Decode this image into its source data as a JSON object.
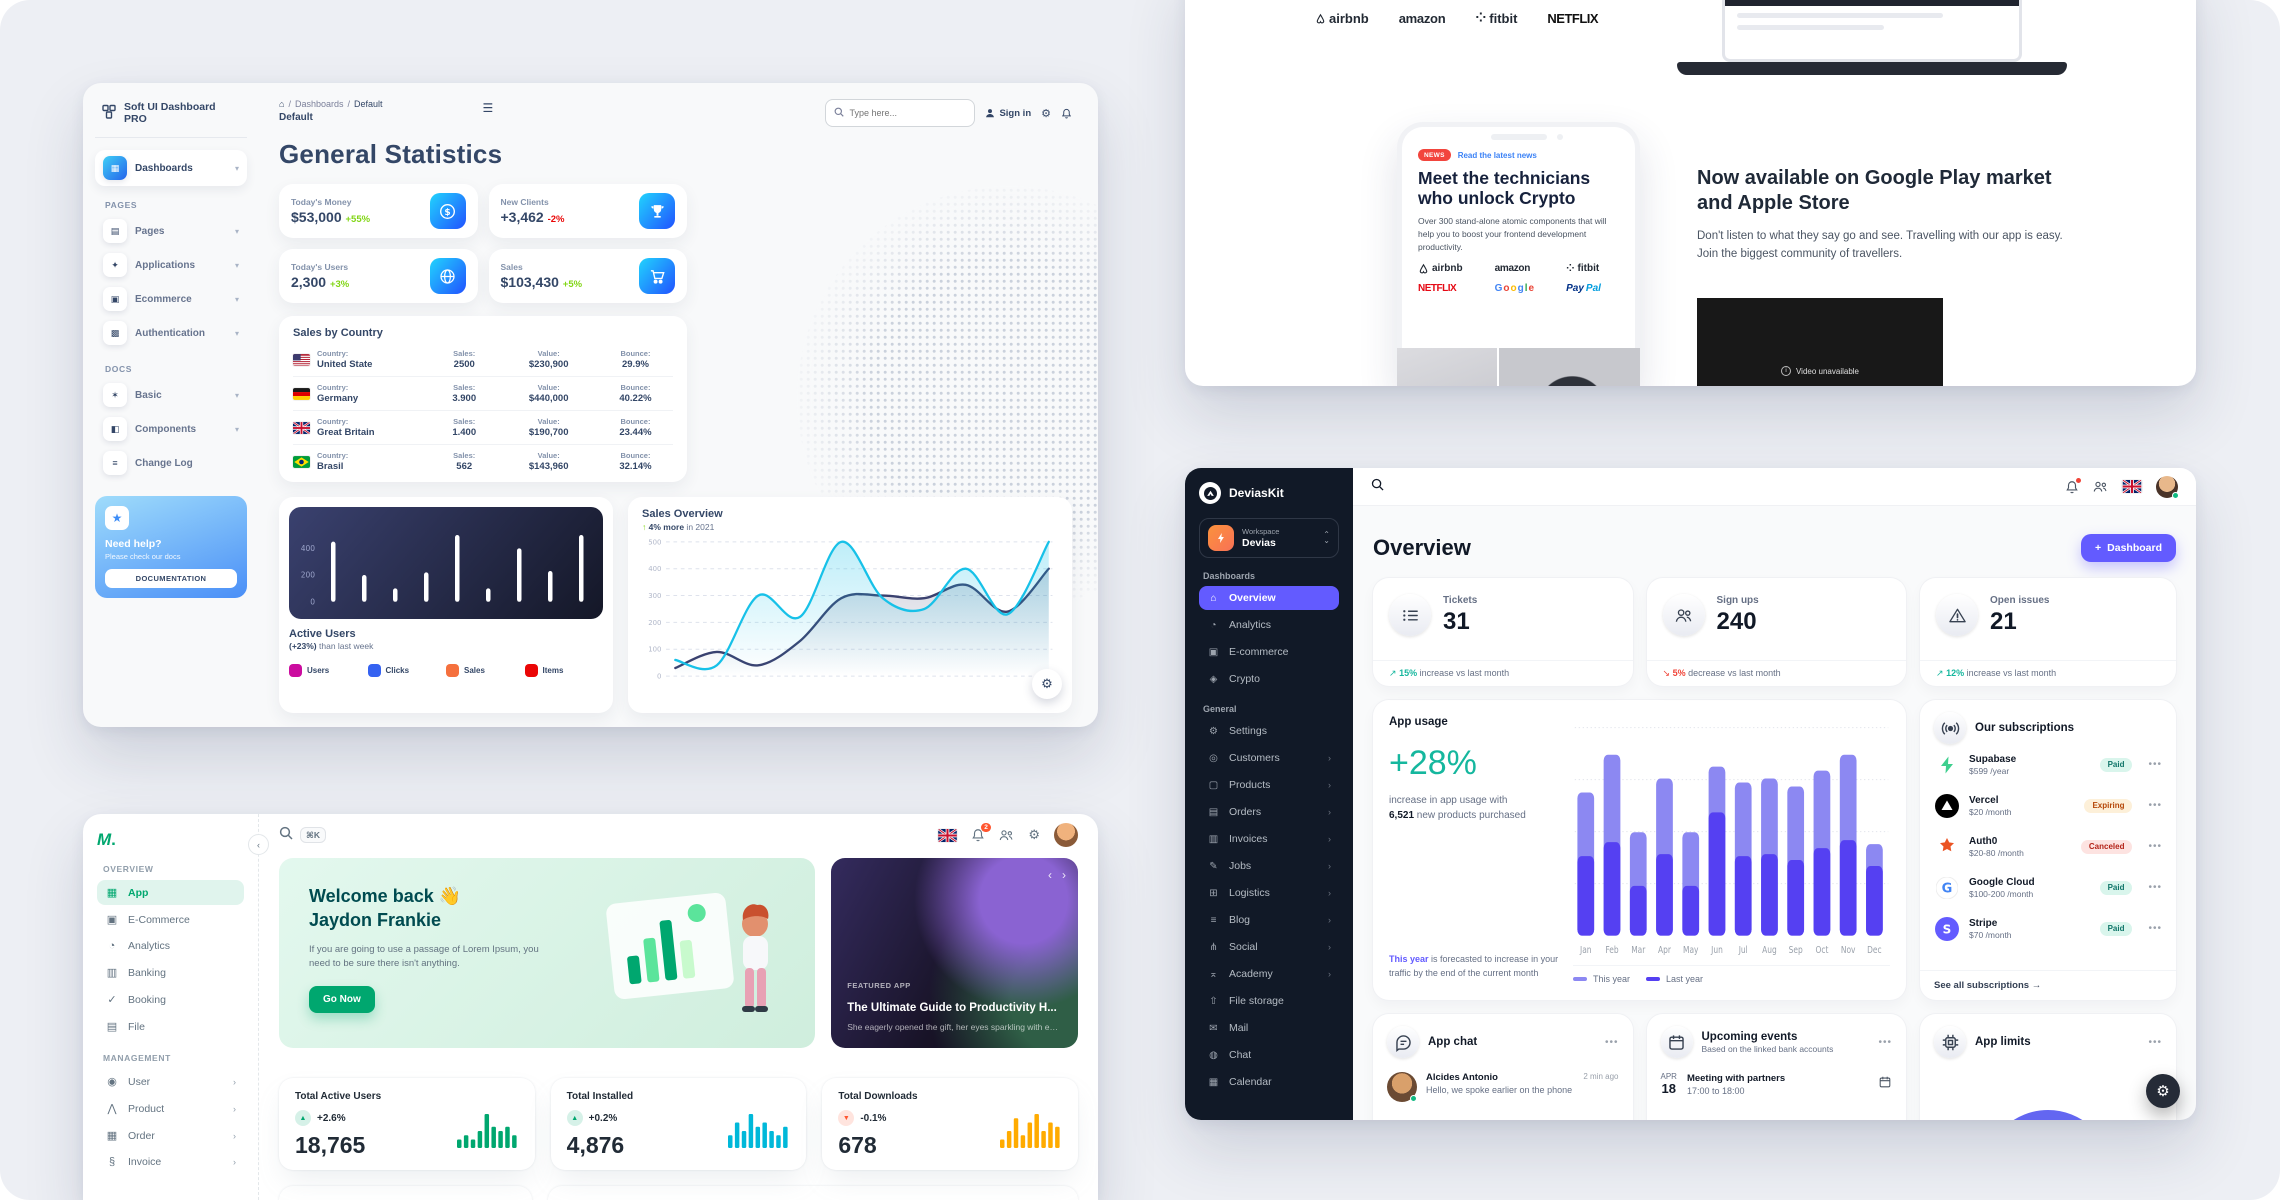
{
  "colors": {
    "softui_green": "#82d616",
    "softui_red": "#ea0606",
    "devias_purple": "#635bff",
    "devias_teal": "#15b79e",
    "devias_red": "#f04438",
    "minimal_green": "#00a76f",
    "minimal_cyan": "#00b8d9",
    "minimal_yellow": "#ffab00"
  },
  "icon_glyphs": {
    "dashboard-icon": "▦",
    "pages-icon": "▤",
    "applications-icon": "✦",
    "ecommerce-icon": "▣",
    "authentication-icon": "▩",
    "basic-icon": "✶",
    "components-icon": "◧",
    "changelog-icon": "≡",
    "home-icon": "⌂",
    "analytics-icon": "◔",
    "crypto-icon": "◈",
    "gear-icon": "⚙",
    "customers-icon": "◎",
    "products-icon": "▢",
    "orders-icon": "▤",
    "invoices-icon": "▥",
    "jobs-icon": "✎",
    "logistics-icon": "⊞",
    "blog-icon": "≡",
    "social-icon": "⋔",
    "academy-icon": "⌅",
    "file-storage-icon": "⇧",
    "mail-icon": "✉",
    "chat-icon": "◍",
    "calendar-icon": "▦",
    "banking-icon": "▥",
    "booking-icon": "✓",
    "file-icon": "▤",
    "user-icon": "◉",
    "product-icon": "⋀",
    "order-icon": "▦",
    "invoice-icon": "§"
  },
  "softui": {
    "brand": "Soft UI Dashboard PRO",
    "sidebar": {
      "active_item": {
        "label": "Dashboards",
        "icon": "dashboard-icon"
      },
      "sections": [
        {
          "title": "PAGES",
          "items": [
            {
              "label": "Pages",
              "icon": "pages-icon",
              "chevron": true
            },
            {
              "label": "Applications",
              "icon": "applications-icon",
              "chevron": true
            },
            {
              "label": "Ecommerce",
              "icon": "ecommerce-icon",
              "chevron": true
            },
            {
              "label": "Authentication",
              "icon": "authentication-icon",
              "chevron": true
            }
          ]
        },
        {
          "title": "DOCS",
          "items": [
            {
              "label": "Basic",
              "icon": "basic-icon",
              "chevron": true
            },
            {
              "label": "Components",
              "icon": "components-icon",
              "chevron": true
            },
            {
              "label": "Change Log",
              "icon": "changelog-icon",
              "chevron": false
            }
          ]
        }
      ],
      "help_card": {
        "title": "Need help?",
        "subtitle": "Please check our docs",
        "button": "DOCUMENTATION"
      }
    },
    "topbar": {
      "breadcrumb": [
        "Dashboards",
        "Default"
      ],
      "page": "Default",
      "search_placeholder": "Type here...",
      "sign_in": "Sign in"
    },
    "title": "General Statistics",
    "stat_cards": [
      {
        "label": "Today's Money",
        "value": "$53,000",
        "delta": "+55%",
        "dir": "up",
        "icon": "dollar-icon"
      },
      {
        "label": "New Clients",
        "value": "+3,462",
        "delta": "-2%",
        "dir": "down",
        "icon": "trophy-icon"
      },
      {
        "label": "Today's Users",
        "value": "2,300",
        "delta": "+3%",
        "dir": "up",
        "icon": "globe-icon"
      },
      {
        "label": "Sales",
        "value": "$103,430",
        "delta": "+5%",
        "dir": "up",
        "icon": "cart-icon"
      }
    ],
    "sales_by_country": {
      "title": "Sales by Country",
      "labels": {
        "country": "Country:",
        "sales": "Sales:",
        "value": "Value:",
        "bounce": "Bounce:"
      },
      "rows": [
        {
          "flag": "us",
          "country": "United State",
          "sales": "2500",
          "value": "$230,900",
          "bounce": "29.9%"
        },
        {
          "flag": "de",
          "country": "Germany",
          "sales": "3.900",
          "value": "$440,000",
          "bounce": "40.22%"
        },
        {
          "flag": "gb",
          "country": "Great Britain",
          "sales": "1.400",
          "value": "$190,700",
          "bounce": "23.44%"
        },
        {
          "flag": "br",
          "country": "Brasil",
          "sales": "562",
          "value": "$143,960",
          "bounce": "32.14%"
        }
      ]
    },
    "active_users": {
      "title": "Active Users",
      "delta_strong": "(+23%)",
      "delta_rest": " than last week",
      "legend": [
        {
          "label": "Users",
          "color": "#cb0c9f",
          "icon": "users-icon"
        },
        {
          "label": "Clicks",
          "color": "#3562f1",
          "icon": "cursor-icon"
        },
        {
          "label": "Sales",
          "color": "#f5703d",
          "icon": "sales-icon"
        },
        {
          "label": "Items",
          "color": "#ea0606",
          "icon": "items-icon"
        }
      ],
      "chart_data": {
        "type": "bar",
        "values": [
          450,
          200,
          100,
          220,
          500,
          100,
          400,
          230,
          500
        ],
        "yticks": [
          0,
          200,
          400
        ],
        "ylim": [
          0,
          520
        ],
        "bar_color": "#ffffff"
      }
    },
    "sales_overview": {
      "title": "Sales Overview",
      "arrow": "↑",
      "delta_strong": "4% more",
      "delta_rest": " in 2021",
      "chart_data": {
        "type": "line",
        "yticks": [
          0,
          100,
          200,
          300,
          400,
          500
        ],
        "ylim": [
          0,
          500
        ],
        "series": [
          {
            "name": "sales-2021",
            "color": "#17c1e8",
            "values": [
              60,
              40,
              300,
              220,
              500,
              290,
              250,
              400,
              230,
              500
            ]
          },
          {
            "name": "sales-2020",
            "color": "#3a416f",
            "values": [
              30,
              90,
              40,
              130,
              290,
              300,
              290,
              340,
              240,
              400
            ]
          }
        ]
      }
    }
  },
  "landing": {
    "header_logos": [
      "airbnb",
      "amazon",
      "fitbit",
      "NETFLIX"
    ],
    "phone": {
      "badge": "NEWS",
      "link": "Read the latest news",
      "heading": "Meet the technicians who unlock Crypto",
      "body": "Over 300 stand-alone atomic components that will help you to boost your frontend development productivity.",
      "logos": [
        "airbnb",
        "amazon",
        "fitbit",
        "NETFLIX",
        "Google",
        "PayPal"
      ]
    },
    "promo": {
      "heading": "Now available on Google Play market and Apple Store",
      "body": "Don't listen to what they say go and see. Travelling with our app is easy. Join the biggest community of travellers.",
      "video_label": "Video unavailable"
    }
  },
  "devias": {
    "brand": "DeviasKit",
    "workspace": {
      "label": "Workspace",
      "name": "Devias"
    },
    "nav_sections": [
      {
        "title": "Dashboards",
        "items": [
          {
            "label": "Overview",
            "icon": "home-icon",
            "active": true
          },
          {
            "label": "Analytics",
            "icon": "analytics-icon"
          },
          {
            "label": "E-commerce",
            "icon": "ecommerce-icon"
          },
          {
            "label": "Crypto",
            "icon": "crypto-icon"
          }
        ]
      },
      {
        "title": "General",
        "items": [
          {
            "label": "Settings",
            "icon": "gear-icon"
          },
          {
            "label": "Customers",
            "icon": "customers-icon",
            "chevron": true
          },
          {
            "label": "Products",
            "icon": "products-icon",
            "chevron": true
          },
          {
            "label": "Orders",
            "icon": "orders-icon",
            "chevron": true
          },
          {
            "label": "Invoices",
            "icon": "invoices-icon",
            "chevron": true
          },
          {
            "label": "Jobs",
            "icon": "jobs-icon",
            "chevron": true
          },
          {
            "label": "Logistics",
            "icon": "logistics-icon",
            "chevron": true
          },
          {
            "label": "Blog",
            "icon": "blog-icon",
            "chevron": true
          },
          {
            "label": "Social",
            "icon": "social-icon",
            "chevron": true
          },
          {
            "label": "Academy",
            "icon": "academy-icon",
            "chevron": true
          },
          {
            "label": "File storage",
            "icon": "file-storage-icon"
          },
          {
            "label": "Mail",
            "icon": "mail-icon"
          },
          {
            "label": "Chat",
            "icon": "chat-icon"
          },
          {
            "label": "Calendar",
            "icon": "calendar-icon"
          }
        ]
      }
    ],
    "page_title": "Overview",
    "add_button": "Dashboard",
    "stat_cards": [
      {
        "label": "Tickets",
        "value": "31",
        "icon": "tickets-icon",
        "dir": "up",
        "pct": "15%",
        "rest": " increase vs last month"
      },
      {
        "label": "Sign ups",
        "value": "240",
        "icon": "signups-icon",
        "dir": "down",
        "pct": "5%",
        "rest": " decrease vs last month"
      },
      {
        "label": "Open issues",
        "value": "21",
        "icon": "issues-icon",
        "dir": "up",
        "pct": "12%",
        "rest": " increase vs last month"
      }
    ],
    "app_usage": {
      "title": "App usage",
      "big_delta": "+28%",
      "line1": "increase in app usage with",
      "line2_strong": "6,521",
      "line2_rest": " new products purchased",
      "footnote_strong": "This year",
      "footnote_rest": " is forecasted to increase in your traffic by the end of the current month",
      "chart_data": {
        "type": "bar-stacked",
        "categories": [
          "Jan",
          "Feb",
          "Mar",
          "Apr",
          "May",
          "Jun",
          "Jul",
          "Aug",
          "Sep",
          "Oct",
          "Nov",
          "Dec"
        ],
        "series": [
          {
            "name": "This year",
            "color": "#8c88f2",
            "values": [
              32,
              44,
              27,
              38,
              27,
              23,
              37,
              38,
              37,
              39,
              43,
              11
            ]
          },
          {
            "name": "Last year",
            "color": "#5540f2",
            "values": [
              40,
              47,
              25,
              41,
              25,
              62,
              40,
              41,
              38,
              44,
              48,
              35
            ]
          }
        ],
        "legend": [
          {
            "label": "This year",
            "color": "#8c88f2"
          },
          {
            "label": "Last year",
            "color": "#5540f2"
          }
        ]
      }
    },
    "subscriptions": {
      "title": "Our subscriptions",
      "items": [
        {
          "name": "Supabase",
          "price": "$599",
          "period": "/year",
          "status": "Paid",
          "icon": "supabase-logo-icon"
        },
        {
          "name": "Vercel",
          "price": "$20",
          "period": "/month",
          "status": "Expiring",
          "icon": "vercel-logo-icon"
        },
        {
          "name": "Auth0",
          "price": "$20-80",
          "period": "/month",
          "status": "Canceled",
          "icon": "auth0-logo-icon"
        },
        {
          "name": "Google Cloud",
          "price": "$100-200",
          "period": "/month",
          "status": "Paid",
          "icon": "google-logo-icon"
        },
        {
          "name": "Stripe",
          "price": "$70",
          "period": "/month",
          "status": "Paid",
          "icon": "stripe-logo-icon"
        }
      ],
      "footer_link": "See all subscriptions"
    },
    "app_chat": {
      "title": "App chat",
      "messages": [
        {
          "name": "Alcides Antonio",
          "text": "Hello, we spoke earlier on the phone",
          "time": "2 min ago"
        }
      ]
    },
    "events": {
      "title": "Upcoming events",
      "subtitle": "Based on the linked bank accounts",
      "items": [
        {
          "month": "APR",
          "day": "18",
          "title": "Meeting with partners",
          "time": "17:00 to 18:00"
        }
      ]
    },
    "app_limits": {
      "title": "App limits"
    }
  },
  "minimal": {
    "nav_sections": [
      {
        "title": "OVERVIEW",
        "items": [
          {
            "label": "App",
            "icon": "dashboard-icon",
            "active": true
          },
          {
            "label": "E-Commerce",
            "icon": "ecommerce-icon"
          },
          {
            "label": "Analytics",
            "icon": "analytics-icon"
          },
          {
            "label": "Banking",
            "icon": "banking-icon"
          },
          {
            "label": "Booking",
            "icon": "booking-icon"
          },
          {
            "label": "File",
            "icon": "file-icon"
          }
        ]
      },
      {
        "title": "MANAGEMENT",
        "items": [
          {
            "label": "User",
            "icon": "user-icon",
            "chevron": true
          },
          {
            "label": "Product",
            "icon": "product-icon",
            "chevron": true
          },
          {
            "label": "Order",
            "icon": "order-icon",
            "chevron": true
          },
          {
            "label": "Invoice",
            "icon": "invoice-icon",
            "chevron": true
          }
        ]
      }
    ],
    "topbar": {
      "shortcut": "⌘K",
      "badge_count": "2"
    },
    "welcome": {
      "greeting": "Welcome back 👋",
      "name": "Jaydon Frankie",
      "body": "If you are going to use a passage of Lorem Ipsum, you need to be sure there isn't anything.",
      "button": "Go Now"
    },
    "featured": {
      "tag": "FEATURED APP",
      "title": "The Ultimate Guide to Productivity H...",
      "subtitle": "She eagerly opened the gift, her eyes sparkling with exc..."
    },
    "stats": [
      {
        "label": "Total Active Users",
        "delta": "+2.6%",
        "dir": "up",
        "value": "18,765",
        "color": "#00a76f",
        "chart_data": {
          "type": "bar",
          "values": [
            2,
            3,
            2,
            4,
            8,
            5,
            4,
            5,
            3
          ]
        }
      },
      {
        "label": "Total Installed",
        "delta": "+0.2%",
        "dir": "up",
        "value": "4,876",
        "color": "#00b8d9",
        "chart_data": {
          "type": "bar",
          "values": [
            3,
            6,
            4,
            8,
            5,
            6,
            4,
            3,
            5
          ]
        }
      },
      {
        "label": "Total Downloads",
        "delta": "-0.1%",
        "dir": "down",
        "value": "678",
        "color": "#ffab00",
        "chart_data": {
          "type": "bar",
          "values": [
            2,
            4,
            7,
            3,
            6,
            8,
            4,
            6,
            5
          ]
        }
      }
    ]
  }
}
